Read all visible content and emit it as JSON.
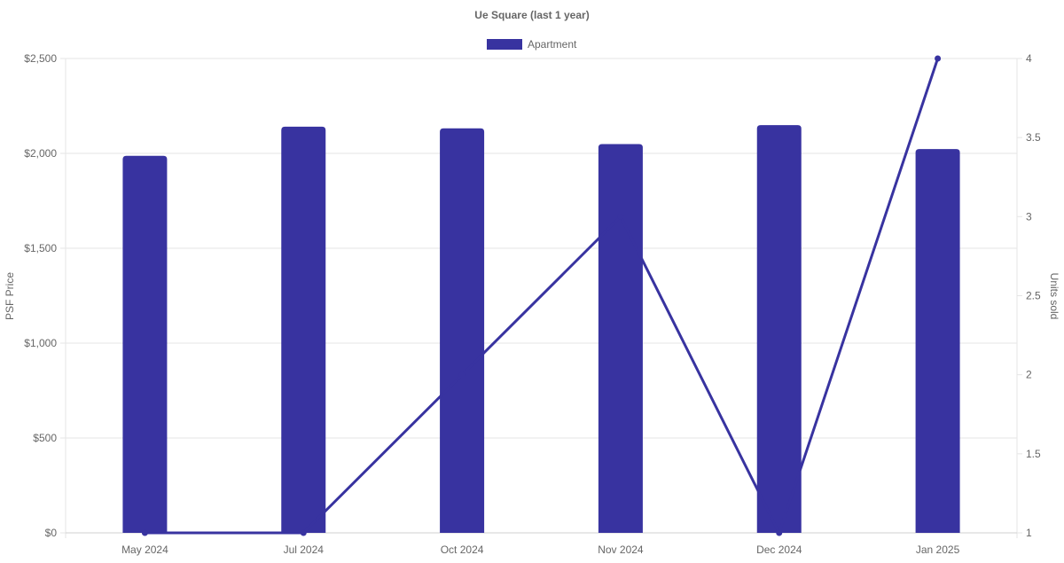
{
  "chart_data": {
    "type": "bar",
    "title": "Ue Square (last 1 year)",
    "categories": [
      "May 2024",
      "Jul 2024",
      "Oct 2024",
      "Nov 2024",
      "Dec 2024",
      "Jan 2025"
    ],
    "series": [
      {
        "name": "Apartment",
        "type": "bar",
        "axis": "left",
        "values": [
          1987,
          2141,
          2132,
          2049,
          2149,
          2023
        ],
        "color": "#3833a0"
      },
      {
        "type": "line",
        "axis": "right",
        "values": [
          1,
          1,
          2,
          3,
          1,
          4
        ],
        "color": "#3833a0"
      }
    ],
    "ylabel": "PSF Price",
    "y2label": "Units sold",
    "ylim": [
      0,
      2500
    ],
    "y2lim": [
      1,
      4
    ],
    "yticks": [
      "$0",
      "$500",
      "$1,000",
      "$1,500",
      "$2,000",
      "$2,500"
    ],
    "y2ticks": [
      "1",
      "1.5",
      "2",
      "2.5",
      "3",
      "3.5",
      "4"
    ],
    "legend": {
      "position": "top",
      "entries": [
        "Apartment"
      ]
    },
    "grid": true
  }
}
